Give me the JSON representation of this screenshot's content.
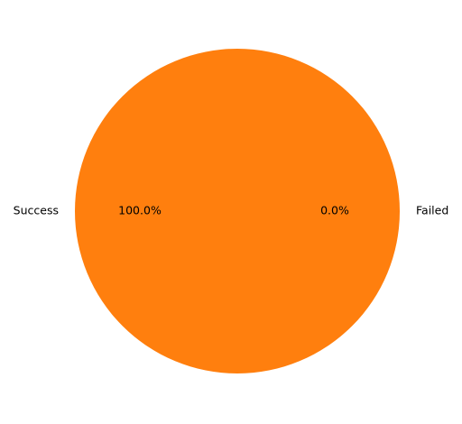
{
  "chart_data": {
    "type": "pie",
    "title": "",
    "slices": [
      {
        "label": "Failed",
        "value": 0.0,
        "percent_label": "0.0%",
        "color": "#1f77b4"
      },
      {
        "label": "Success",
        "value": 100.0,
        "percent_label": "100.0%",
        "color": "#ff7f0e"
      }
    ],
    "start_angle_deg": 0,
    "direction": "counterclockwise",
    "legend": "none"
  }
}
